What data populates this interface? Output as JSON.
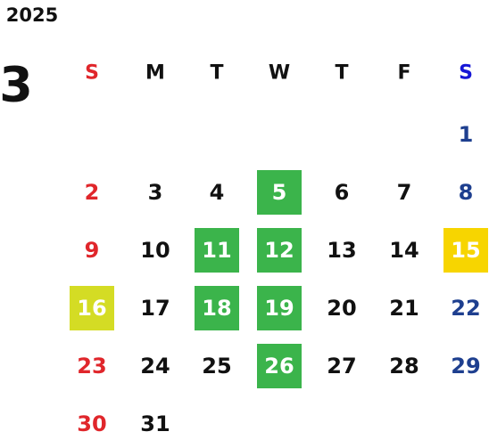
{
  "year": "2025",
  "month": "3",
  "weekdays": [
    "S",
    "M",
    "T",
    "W",
    "T",
    "F",
    "S"
  ],
  "sunday_color": "#e0262b",
  "saturday_header_color": "#1717d6",
  "saturday_color": "#1e3f8f",
  "weeks": [
    [
      null,
      null,
      null,
      null,
      null,
      null,
      1
    ],
    [
      2,
      3,
      4,
      {
        "day": 5,
        "color": "#3bb44b"
      },
      6,
      7,
      8
    ],
    [
      9,
      10,
      {
        "day": 11,
        "color": "#3bb44b"
      },
      {
        "day": 12,
        "color": "#3bb44b"
      },
      13,
      14,
      {
        "day": 15,
        "color": "#f7d500"
      }
    ],
    [
      {
        "day": 16,
        "color": "#d4dc24"
      },
      17,
      {
        "day": 18,
        "color": "#3bb44b"
      },
      {
        "day": 19,
        "color": "#3bb44b"
      },
      20,
      21,
      22
    ],
    [
      23,
      24,
      25,
      {
        "day": 26,
        "color": "#3bb44b"
      },
      27,
      28,
      29
    ],
    [
      30,
      31,
      null,
      null,
      null,
      null,
      null
    ]
  ]
}
